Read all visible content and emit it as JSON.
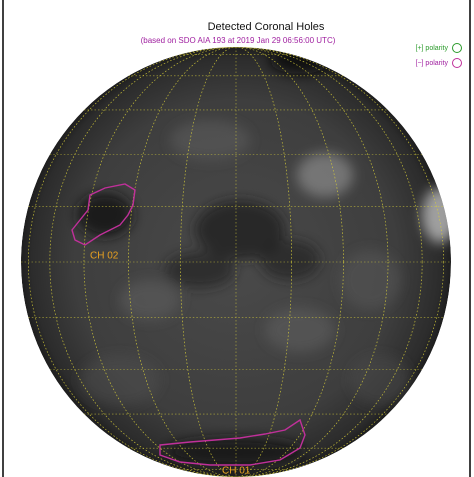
{
  "header": {
    "title": "Detected Coronal Holes",
    "subtitle": "(based on SDO AIA 193 at 2019 Jan 29 06:56:00 UTC)"
  },
  "legend": [
    {
      "label": "[+] polarity"
    },
    {
      "label": "[−] polarity"
    }
  ],
  "regions": [
    {
      "label": "CH 02"
    },
    {
      "label": "CH 01"
    }
  ]
}
